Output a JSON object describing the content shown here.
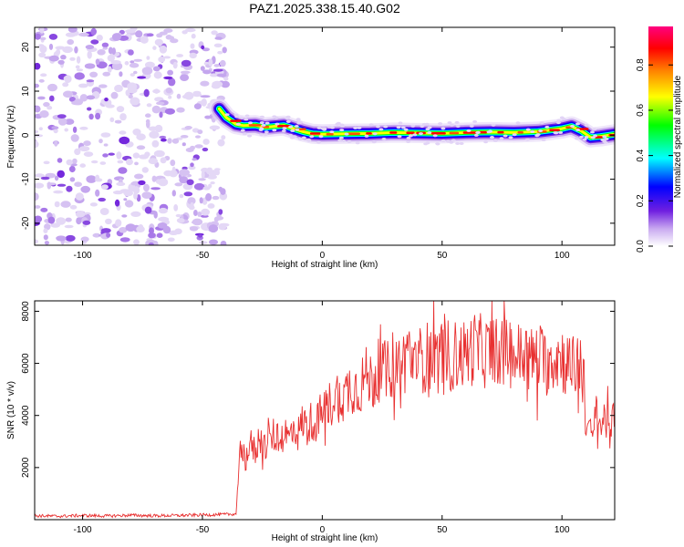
{
  "figure_title": "PAZ1.2025.338.15.40.G02",
  "chart_data": [
    {
      "type": "heatmap",
      "title": "PAZ1.2025.338.15.40.G02",
      "xlabel": "Height of straight line (km)",
      "ylabel": "Frequency (Hz)",
      "xlim": [
        -120,
        122
      ],
      "ylim": [
        -25,
        24.5
      ],
      "xticks": [
        -100,
        -50,
        0,
        50,
        100
      ],
      "yticks": [
        -20,
        -10,
        0,
        10,
        20
      ],
      "xtick_labels": [
        "-100",
        "-50",
        "0",
        "50",
        "100"
      ],
      "ytick_labels": [
        "-20",
        "-10",
        "0",
        "10",
        "20"
      ],
      "noise_region_x": [
        -120,
        -40
      ],
      "signal_track": {
        "x": [
          -43,
          -40,
          -36,
          -33,
          -28,
          -24,
          -20,
          -16,
          -12,
          -8,
          -4,
          0,
          10,
          20,
          30,
          40,
          50,
          60,
          70,
          80,
          90,
          100,
          104,
          108,
          112,
          116,
          122
        ],
        "freq_hz": [
          6.0,
          4.0,
          2.5,
          2.2,
          2.3,
          1.8,
          2.0,
          2.2,
          1.5,
          0.8,
          0.3,
          0.2,
          0.3,
          0.4,
          0.6,
          0.5,
          0.4,
          0.6,
          0.7,
          0.6,
          0.8,
          1.5,
          2.0,
          1.0,
          -0.5,
          -0.3,
          0.2
        ]
      },
      "colorbar": {
        "label": "Normalized spectral amplitude",
        "range": [
          0.0,
          0.97
        ],
        "ticks": [
          0.0,
          0.2,
          0.4,
          0.6,
          0.8
        ],
        "tick_labels": [
          "0.0",
          "0.2",
          "0.4",
          "0.6",
          "0.8"
        ],
        "colors": [
          "#ffffff",
          "#c8a8f0",
          "#7020e0",
          "#0000ff",
          "#00ffff",
          "#00ff00",
          "#ffff00",
          "#ff8000",
          "#ff0000",
          "#ff0080"
        ]
      }
    },
    {
      "type": "line",
      "xlabel": "Height of straight line (km)",
      "ylabel": "SNR (10 * v/v)",
      "xlim": [
        -120,
        122
      ],
      "ylim": [
        0,
        8400
      ],
      "xticks": [
        -100,
        -50,
        0,
        50,
        100
      ],
      "yticks": [
        2000,
        4000,
        6000,
        8000
      ],
      "xtick_labels": [
        "-100",
        "-50",
        "0",
        "50",
        "100"
      ],
      "ytick_labels": [
        "2000",
        "4000",
        "6000",
        "8000"
      ],
      "line_color": "#e83030",
      "series": [
        {
          "name": "SNR",
          "x": [
            -120,
            -110,
            -100,
            -90,
            -80,
            -70,
            -60,
            -50,
            -40,
            -36,
            -35,
            -34,
            -32,
            -30,
            -28,
            -26,
            -24,
            -22,
            -20,
            -18,
            -16,
            -14,
            -12,
            -10,
            -8,
            -6,
            -4,
            -2,
            0,
            3,
            6,
            9,
            12,
            15,
            18,
            21,
            24,
            27,
            30,
            33,
            36,
            39,
            42,
            45,
            48,
            51,
            54,
            57,
            60,
            63,
            66,
            69,
            72,
            75,
            78,
            81,
            84,
            87,
            90,
            93,
            96,
            99,
            102,
            105,
            108,
            110,
            112,
            114,
            116,
            118,
            120,
            122
          ],
          "values": [
            150,
            130,
            160,
            140,
            170,
            150,
            160,
            180,
            200,
            220,
            1500,
            2800,
            2300,
            2900,
            2600,
            3200,
            2800,
            3000,
            3300,
            2900,
            3400,
            3100,
            3600,
            3300,
            3800,
            3500,
            3900,
            3700,
            4200,
            4400,
            4800,
            4700,
            5200,
            5000,
            5500,
            5300,
            5800,
            5600,
            6100,
            5900,
            6400,
            6000,
            6200,
            6300,
            6100,
            6500,
            6200,
            6400,
            6300,
            6600,
            6500,
            6400,
            6700,
            6300,
            6500,
            6200,
            6400,
            6100,
            6300,
            6000,
            6200,
            6300,
            6000,
            5800,
            6200,
            3800,
            3200,
            4000,
            3600,
            3900,
            3500,
            3800
          ]
        }
      ]
    }
  ]
}
